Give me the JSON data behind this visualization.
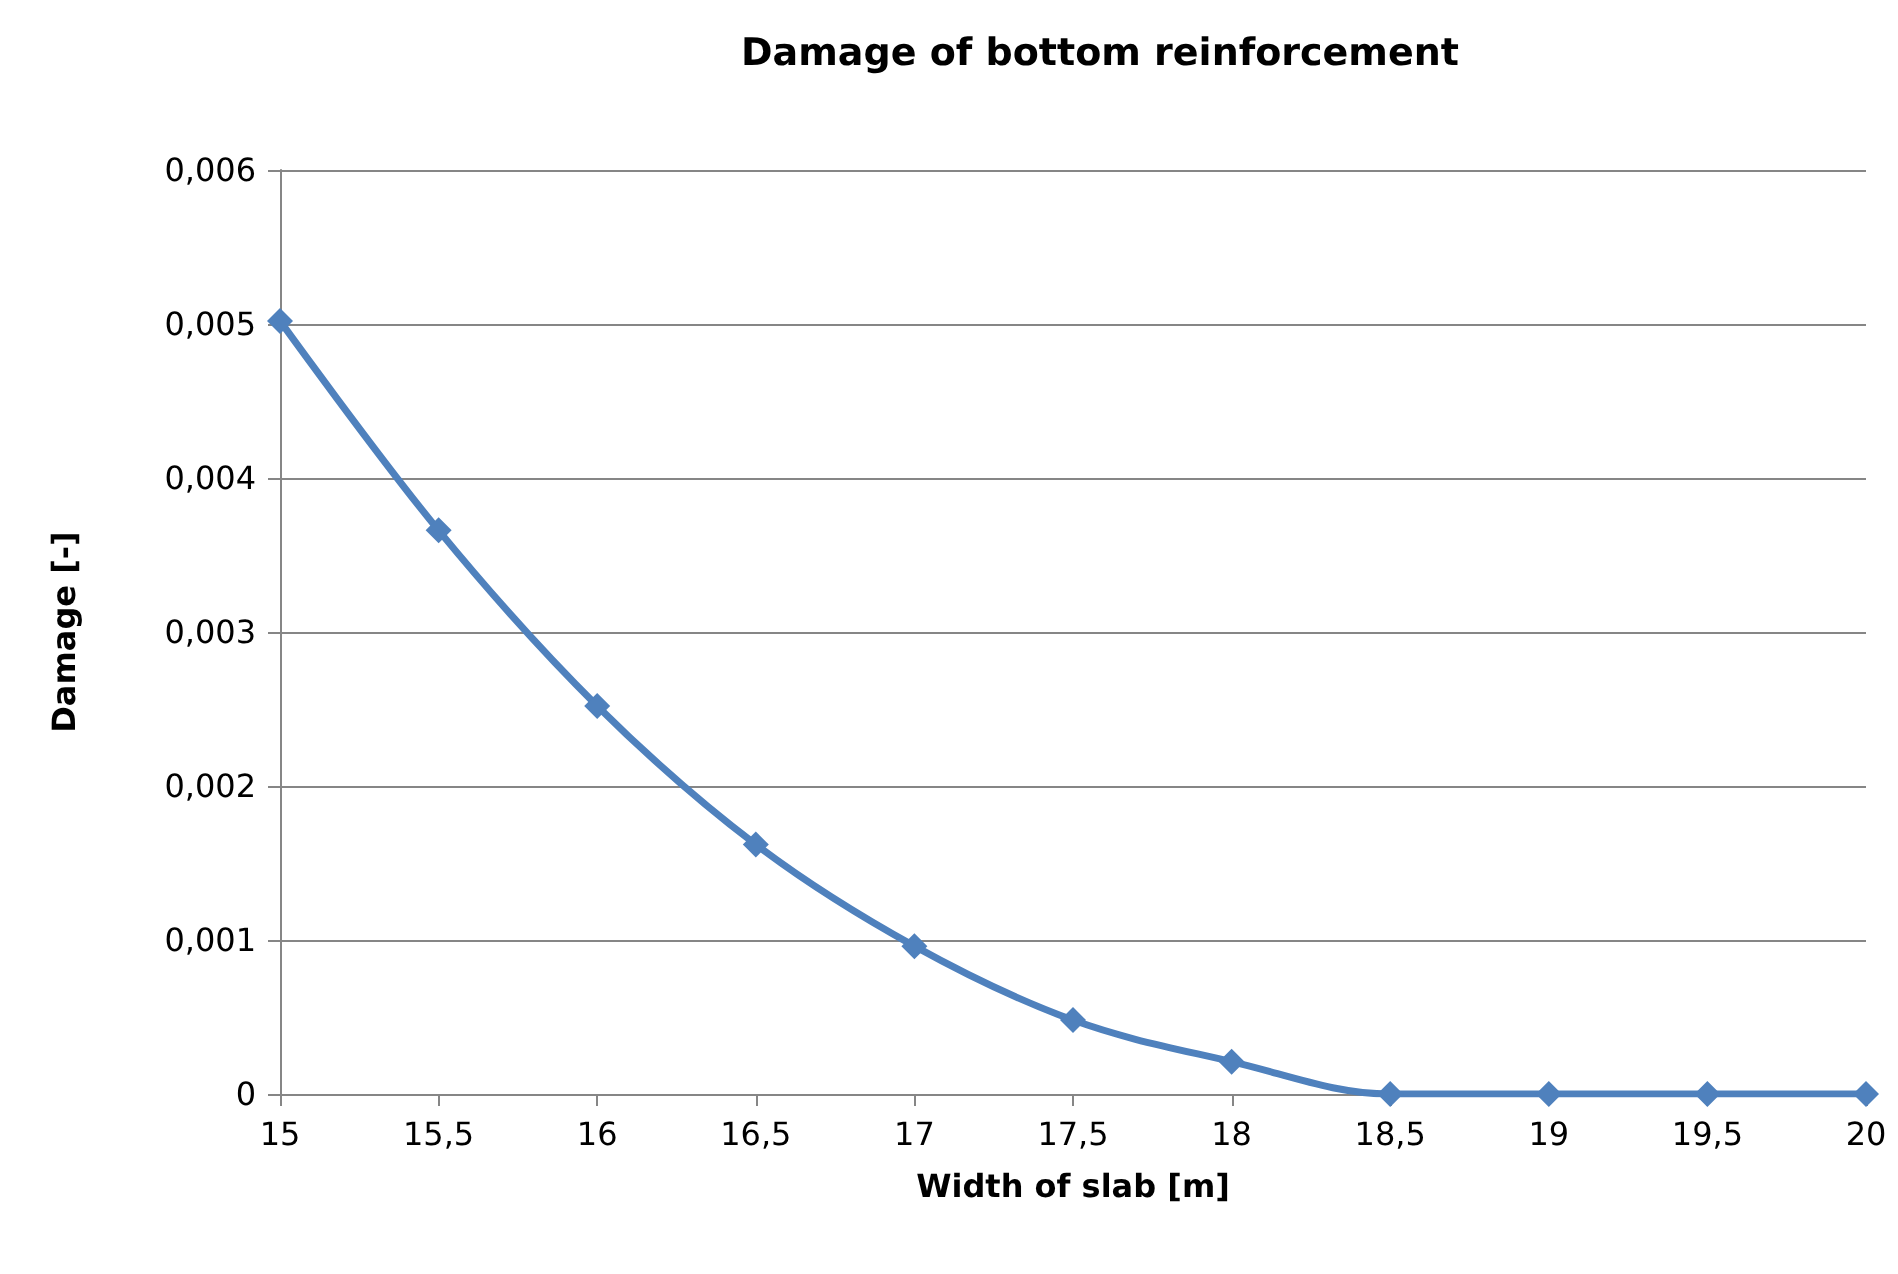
{
  "chart_data": {
    "type": "line",
    "title": "Damage of bottom reinforcement",
    "xlabel": "Width of slab [m]",
    "ylabel": "Damage [-]",
    "x": [
      15,
      15.5,
      16,
      16.5,
      17,
      17.5,
      18,
      18.5,
      19,
      19.5,
      20
    ],
    "series": [
      {
        "color": "#4f81bd",
        "values": [
          0.00502,
          0.00366,
          0.00252,
          0.00162,
          0.00096,
          0.00048,
          0.00021,
          0,
          0,
          0,
          0
        ]
      }
    ],
    "xlim": [
      15,
      20
    ],
    "xticks": [
      15,
      {
        "value": 15.5,
        "label": "15,5"
      },
      16,
      {
        "value": 16.5,
        "label": "16,5"
      },
      17,
      {
        "value": 17.5,
        "label": "17,5"
      },
      18,
      {
        "value": 18.5,
        "label": "18,5"
      },
      19,
      {
        "value": 19.5,
        "label": "19,5"
      },
      20
    ],
    "ylim": [
      0,
      0.006
    ],
    "yticks": [
      0,
      {
        "value": 0.001,
        "label": "0,001"
      },
      {
        "value": 0.002,
        "label": "0,002"
      },
      {
        "value": 0.003,
        "label": "0,003"
      },
      {
        "value": 0.004,
        "label": "0,004"
      },
      {
        "value": 0.005,
        "label": "0,005"
      },
      {
        "value": 0.006,
        "label": "0,006"
      }
    ],
    "grid": "y",
    "marker": "diamond",
    "line_style": "solid"
  }
}
